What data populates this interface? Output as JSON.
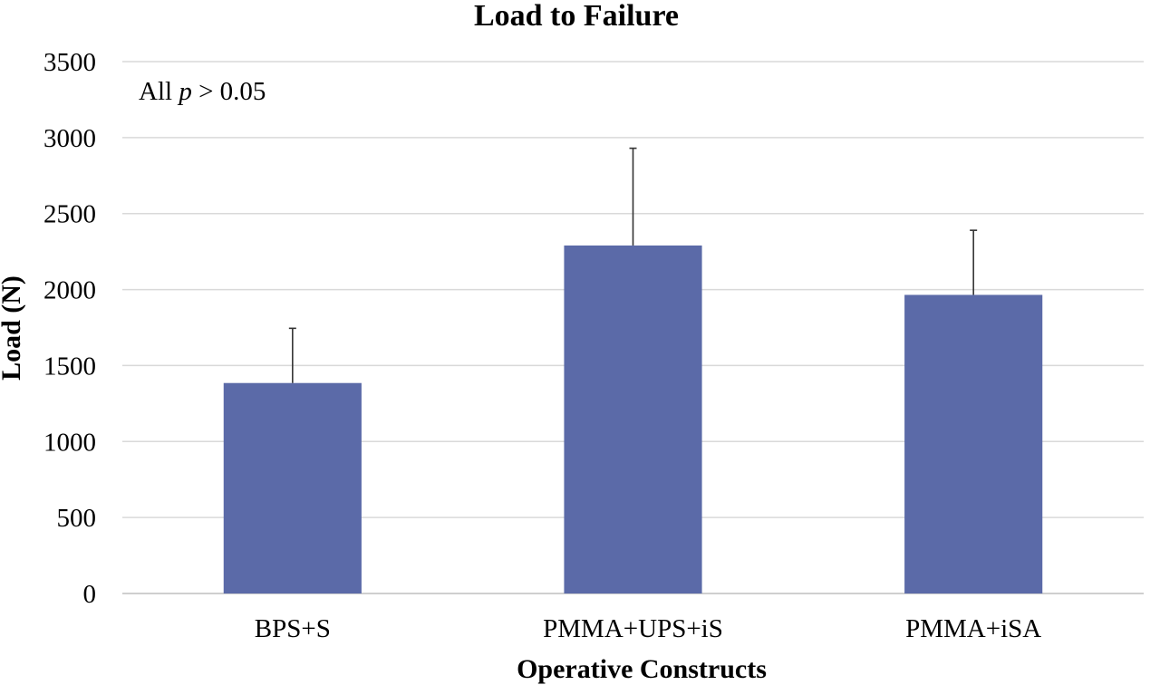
{
  "chart_data": {
    "type": "bar",
    "title": "Load to Failure",
    "xlabel": "Operative Constructs",
    "ylabel": "Load (N)",
    "categories": [
      "BPS+S",
      "PMMA+UPS+iS",
      "PMMA+iSA"
    ],
    "values": [
      1385,
      2290,
      1965
    ],
    "error_upper": [
      360,
      640,
      425
    ],
    "ylim": [
      0,
      3500
    ],
    "yticks": [
      0,
      500,
      1000,
      1500,
      2000,
      2500,
      3000,
      3500
    ],
    "grid": true,
    "bar_color": "#5b6aa8",
    "annotation": {
      "prefix": "All ",
      "symbol": "p",
      "suffix": " > 0.05"
    }
  }
}
